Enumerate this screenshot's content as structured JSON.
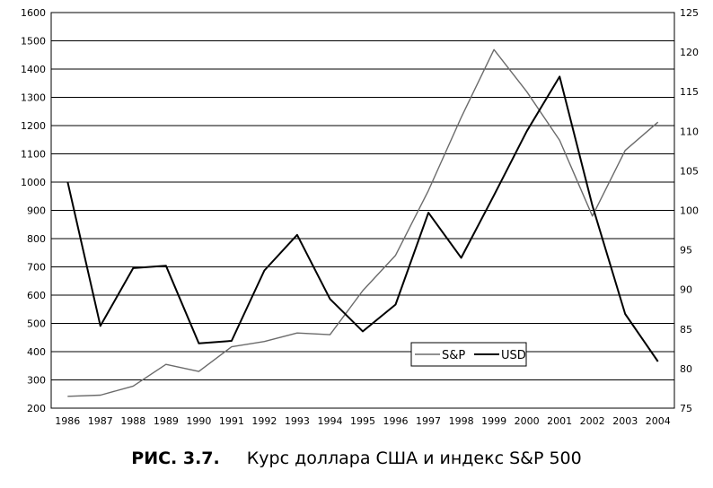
{
  "chart_data": {
    "type": "line",
    "x": [
      1986,
      1987,
      1988,
      1989,
      1990,
      1991,
      1992,
      1993,
      1994,
      1995,
      1996,
      1997,
      1998,
      1999,
      2000,
      2001,
      2002,
      2003,
      2004
    ],
    "x_tick_labels": [
      "1986",
      "1987",
      "1988",
      "1989",
      "1990",
      "1991",
      "1992",
      "1993",
      "1994",
      "1995",
      "1996",
      "1997",
      "1998",
      "1999",
      "2000",
      "2001",
      "2002",
      "2003",
      "2004"
    ],
    "series": [
      {
        "name": "S&P",
        "axis": "left",
        "color": "#6b6b6b",
        "values": [
          242,
          246,
          278,
          355,
          330,
          417,
          436,
          466,
          460,
          616,
          741,
          970,
          1229,
          1469,
          1320,
          1148,
          880,
          1112,
          1212
        ]
      },
      {
        "name": "USD",
        "axis": "right",
        "color": "#000000",
        "values": [
          103.6,
          85.4,
          92.7,
          93.0,
          83.2,
          83.5,
          92.4,
          96.9,
          88.8,
          84.7,
          88.1,
          99.7,
          94.0,
          101.9,
          110.0,
          116.9,
          100.6,
          86.9,
          80.9
        ]
      }
    ],
    "y_left": {
      "ylim": [
        200,
        1600
      ],
      "ticks": [
        200,
        300,
        400,
        500,
        600,
        700,
        800,
        900,
        1000,
        1100,
        1200,
        1300,
        1400,
        1500,
        1600
      ]
    },
    "y_right": {
      "ylim": [
        75,
        125
      ],
      "ticks": [
        75,
        80,
        85,
        90,
        95,
        100,
        105,
        110,
        115,
        120,
        125
      ]
    },
    "grid": "horizontal",
    "legend": {
      "position": "lower-center",
      "entries": [
        "S&P",
        "USD"
      ]
    }
  },
  "caption": {
    "figure_number": "РИС. 3.7.",
    "text": "Курс доллара США и индекс S&P 500"
  }
}
